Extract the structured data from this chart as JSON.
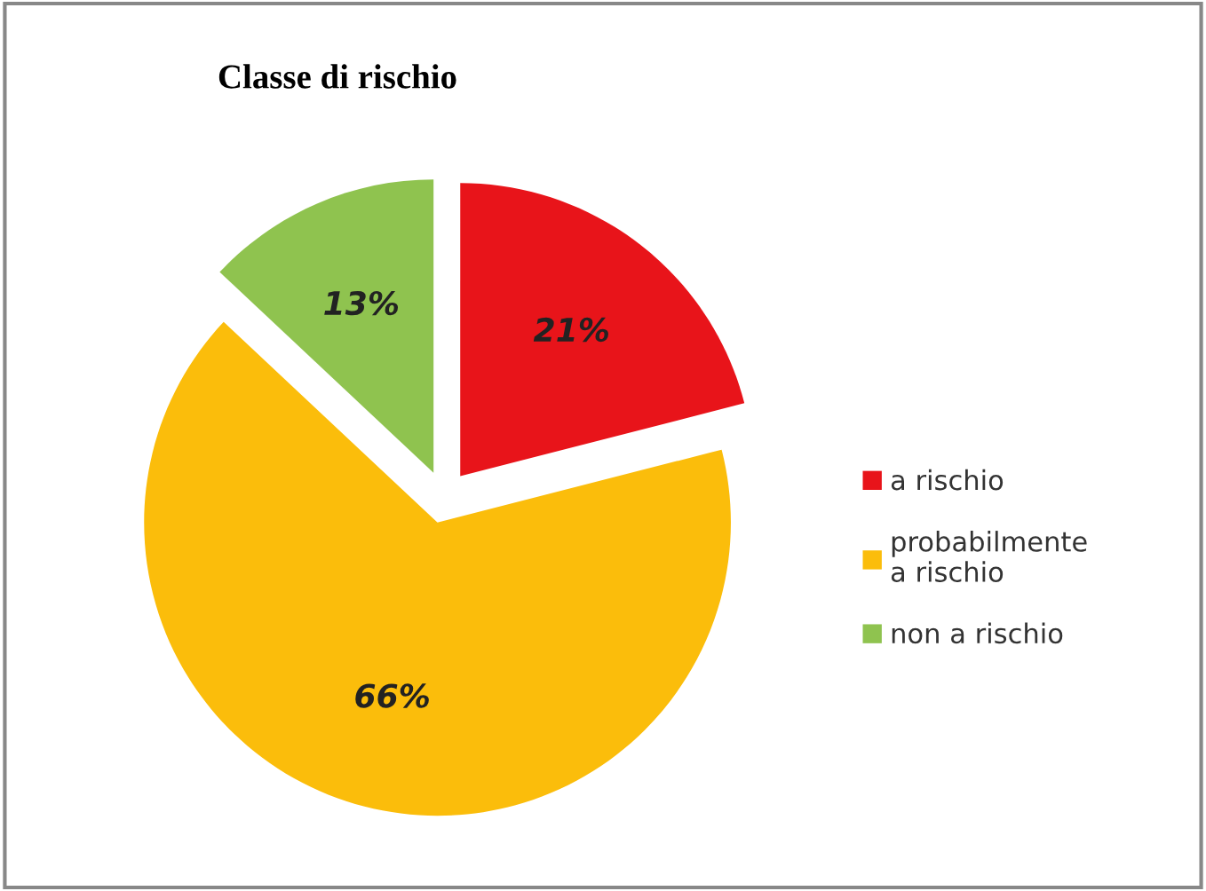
{
  "chart_data": {
    "type": "pie",
    "title": "Classe di rischio",
    "categories": [
      "a rischio",
      "probabilmente\na rischio",
      "non a rischio"
    ],
    "values": [
      21,
      66,
      13
    ],
    "colors": [
      "#e8141a",
      "#fbbd0b",
      "#8fc34f"
    ],
    "value_labels": [
      "21%",
      "66%",
      "13%"
    ],
    "legend": "right"
  }
}
